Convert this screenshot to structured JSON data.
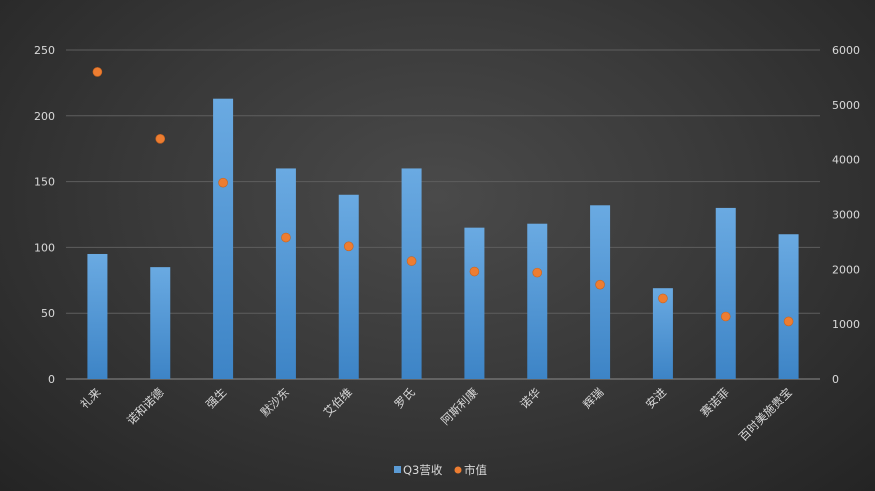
{
  "chart_data": {
    "type": "bar",
    "categories": [
      "礼来",
      "诺和诺德",
      "强生",
      "默沙东",
      "艾伯维",
      "罗氏",
      "阿斯利康",
      "诺华",
      "辉瑞",
      "安进",
      "赛诺菲",
      "百时美施贵宝"
    ],
    "series": [
      {
        "name": "Q3营收",
        "type": "bar",
        "axis": "left",
        "color": "#5b9bd5",
        "values": [
          95,
          85,
          213,
          160,
          140,
          160,
          115,
          118,
          132,
          69,
          130,
          110
        ]
      },
      {
        "name": "市值",
        "type": "scatter",
        "axis": "right",
        "color": "#ed7d31",
        "values": [
          5600,
          4380,
          3580,
          2580,
          2420,
          2150,
          1960,
          1940,
          1720,
          1470,
          1140,
          1050
        ]
      }
    ],
    "y_left": {
      "ticks": [
        0,
        50,
        100,
        150,
        200,
        250
      ],
      "ylim": [
        0,
        250
      ]
    },
    "y_right": {
      "ticks": [
        0,
        1000,
        2000,
        3000,
        4000,
        5000,
        6000
      ],
      "ylim": [
        0,
        6000
      ]
    },
    "grid": true,
    "legend_position": "bottom"
  }
}
